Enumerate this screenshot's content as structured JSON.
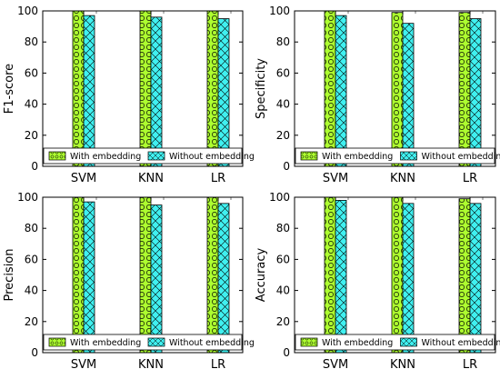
{
  "colors": {
    "with_embedding": "#adff2f",
    "without_embedding": "#40f0f0",
    "edge": "#000000"
  },
  "chart_data": [
    {
      "type": "bar",
      "ylabel": "F1-score",
      "categories": [
        "SVM",
        "KNN",
        "LR"
      ],
      "ylim": [
        0,
        100
      ],
      "yticks": [
        "0",
        "20",
        "40",
        "60",
        "80",
        "100"
      ],
      "grid": false,
      "legend_position": "bottom",
      "series": [
        {
          "name": "With embedding",
          "values": [
            100,
            100,
            100
          ],
          "hatch": "circles"
        },
        {
          "name": "Without embedding",
          "values": [
            97,
            96,
            95
          ],
          "hatch": "crosses"
        }
      ]
    },
    {
      "type": "bar",
      "ylabel": "Specificity",
      "categories": [
        "SVM",
        "KNN",
        "LR"
      ],
      "ylim": [
        0,
        100
      ],
      "yticks": [
        "0",
        "20",
        "40",
        "60",
        "80",
        "100"
      ],
      "grid": false,
      "legend_position": "bottom",
      "series": [
        {
          "name": "With embedding",
          "values": [
            100,
            99,
            99
          ],
          "hatch": "circles"
        },
        {
          "name": "Without embedding",
          "values": [
            97,
            92,
            95
          ],
          "hatch": "crosses"
        }
      ]
    },
    {
      "type": "bar",
      "ylabel": "Precision",
      "categories": [
        "SVM",
        "KNN",
        "LR"
      ],
      "ylim": [
        0,
        100
      ],
      "yticks": [
        "0",
        "20",
        "40",
        "60",
        "80",
        "100"
      ],
      "grid": false,
      "legend_position": "bottom",
      "series": [
        {
          "name": "With embedding",
          "values": [
            100,
            100,
            100
          ],
          "hatch": "circles"
        },
        {
          "name": "Without embedding",
          "values": [
            97,
            95,
            96
          ],
          "hatch": "crosses"
        }
      ]
    },
    {
      "type": "bar",
      "ylabel": "Accuracy",
      "categories": [
        "SVM",
        "KNN",
        "LR"
      ],
      "ylim": [
        0,
        100
      ],
      "yticks": [
        "0",
        "20",
        "40",
        "60",
        "80",
        "100"
      ],
      "grid": false,
      "legend_position": "bottom",
      "series": [
        {
          "name": "With embedding",
          "values": [
            100,
            100,
            99
          ],
          "hatch": "circles"
        },
        {
          "name": "Without embedding",
          "values": [
            98,
            96,
            96
          ],
          "hatch": "crosses"
        }
      ]
    }
  ]
}
